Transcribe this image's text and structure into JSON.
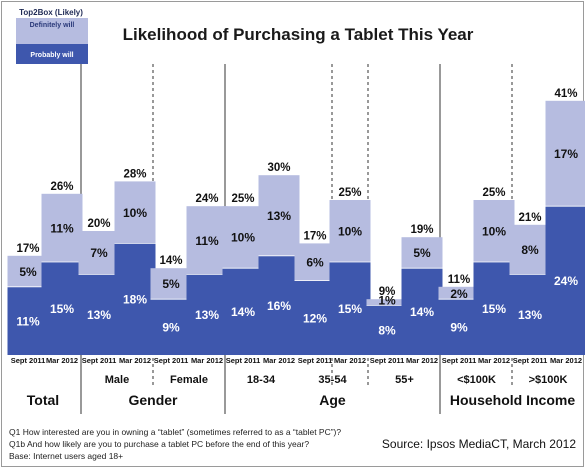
{
  "chart_data": {
    "type": "bar",
    "stacked": true,
    "title": "Likelihood of Purchasing a Tablet This Year",
    "legend": {
      "title": "Top2Box (Likely)",
      "placement": "top-left",
      "entries": [
        "Definitely will",
        "Probably will"
      ]
    },
    "colors": {
      "definitely": "#b6bce0",
      "probably": "#3e57ad",
      "divider": "#333333"
    },
    "ylim": [
      0,
      45
    ],
    "categories": [
      "Sept 2011",
      "Mar 2012",
      "Sept 2011",
      "Mar 2012",
      "Sept 2011",
      "Mar 2012",
      "Sept 2011",
      "Mar 2012",
      "Sept 2011",
      "Mar 2012",
      "Sept 2011",
      "Mar 2012",
      "Sept 2011",
      "Mar 2012",
      "Sept 2011",
      "Mar 2012"
    ],
    "series": [
      {
        "name": "Probably will",
        "values": [
          11,
          15,
          13,
          18,
          9,
          13,
          14,
          16,
          12,
          15,
          8,
          14,
          9,
          15,
          13,
          24
        ],
        "labels": [
          "11%",
          "15%",
          "13%",
          "18%",
          "9%",
          "13%",
          "14%",
          "16%",
          "12%",
          "15%",
          "8%",
          "14%",
          "9%",
          "15%",
          "13%",
          "24%"
        ]
      },
      {
        "name": "Definitely will",
        "values": [
          5,
          11,
          7,
          10,
          5,
          11,
          10,
          13,
          6,
          10,
          1,
          5,
          2,
          10,
          8,
          17
        ],
        "labels": [
          "5%",
          "11%",
          "7%",
          "10%",
          "5%",
          "11%",
          "10%",
          "13%",
          "6%",
          "10%",
          "1%",
          "5%",
          "2%",
          "10%",
          "8%",
          "17%"
        ]
      }
    ],
    "totals": [
      "17%",
      "26%",
      "20%",
      "28%",
      "14%",
      "24%",
      "25%",
      "30%",
      "17%",
      "25%",
      "9%",
      "19%",
      "11%",
      "25%",
      "21%",
      "41%"
    ],
    "subgroups": [
      {
        "label": "Total",
        "bars": [
          0,
          1
        ]
      },
      {
        "label": "Male",
        "bars": [
          2,
          3
        ]
      },
      {
        "label": "Female",
        "bars": [
          4,
          5
        ]
      },
      {
        "label": "18-34",
        "bars": [
          6,
          7
        ]
      },
      {
        "label": "35-54",
        "bars": [
          8,
          9
        ]
      },
      {
        "label": "55+",
        "bars": [
          10,
          11
        ]
      },
      {
        "label": "<$100K",
        "bars": [
          12,
          13
        ]
      },
      {
        "label": ">$100K",
        "bars": [
          14,
          15
        ]
      }
    ],
    "groups": [
      {
        "label": "Total",
        "subgroups": [
          0
        ]
      },
      {
        "label": "Gender",
        "subgroups": [
          1,
          2
        ]
      },
      {
        "label": "Age",
        "subgroups": [
          3,
          4,
          5
        ]
      },
      {
        "label": "Household Income",
        "subgroups": [
          6,
          7
        ]
      }
    ]
  },
  "footnotes": [
    "Q1 How interested are you in owning a “tablet” (sometimes referred to as a “tablet PC”)?",
    "Q1b And how likely are you to purchase a tablet PC before the end of this year?",
    "Base: Internet users aged 18+"
  ],
  "source": "Source: Ipsos MediaCT, March 2012"
}
